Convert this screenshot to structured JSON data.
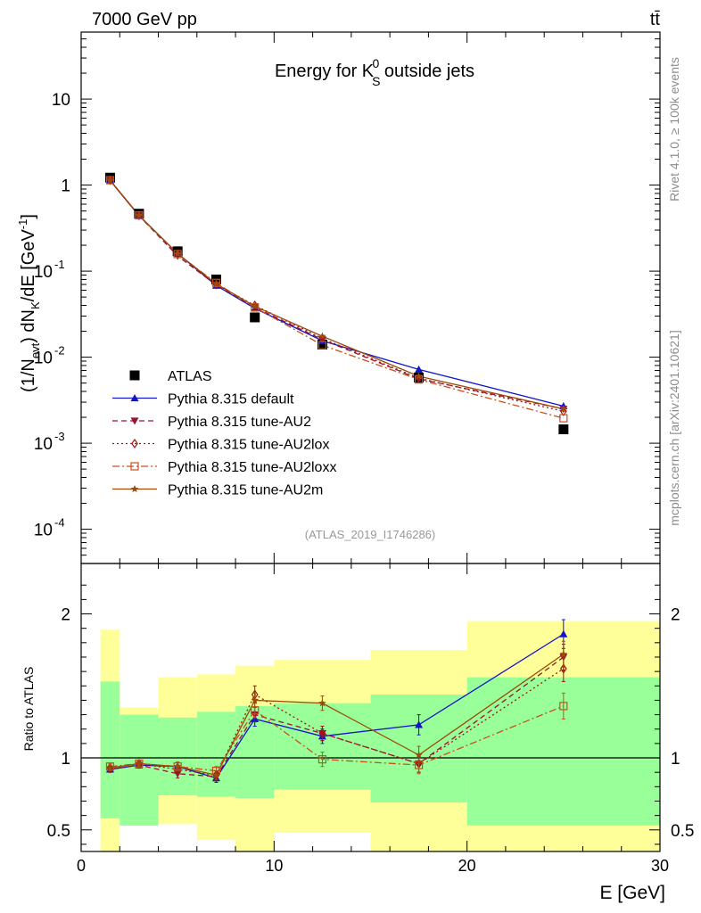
{
  "header": {
    "left": "7000 GeV pp",
    "right": "tt̄"
  },
  "side_labels": {
    "rivet": "Rivet 4.1.0, ≥ 100k events",
    "mcplots": "mcplots.cern.ch [arXiv:2401.10621]"
  },
  "colors": {
    "ATLAS": "#000000",
    "default": "#1414c8",
    "AU2": "#961432",
    "AU2lox": "#a01414",
    "AU2loxx": "#c8501e",
    "AU2m": "#9a4c0a",
    "band_inner": "#99ff99",
    "band_outer": "#ffff99"
  },
  "chart_data": [
    {
      "type": "line",
      "title": "Energy for K⁰S outside jets",
      "title_parts": {
        "pre": "Energy for K",
        "sup": "0",
        "sub": "S",
        "post": " outside jets"
      },
      "watermark": "(ATLAS_2019_I1746286)",
      "xlabel": "E [GeV]",
      "ylabel": "(1/Nevt) dNK/dE [GeV⁻¹]",
      "ylabel_parts": {
        "a": "(1/N",
        "a_sub": "evt",
        "b": ") dN",
        "b_sub": "K",
        "c": "/dE [GeV",
        "c_sup": "-1",
        "d": "]"
      },
      "xlim": [
        0,
        30
      ],
      "ylim": [
        4e-05,
        60
      ],
      "yscale": "log",
      "y_ticks": [
        {
          "value": 10,
          "label": "10"
        },
        {
          "value": 1,
          "label": "1"
        },
        {
          "value": 0.1,
          "label": "10",
          "exp": "-1"
        },
        {
          "value": 0.01,
          "label": "10",
          "exp": "-2"
        },
        {
          "value": 0.001,
          "label": "10",
          "exp": "-3"
        },
        {
          "value": 0.0001,
          "label": "10",
          "exp": "-4"
        }
      ],
      "x": [
        1.5,
        3,
        5,
        7,
        9,
        12.5,
        17.5,
        25
      ],
      "series": [
        {
          "name": "ATLAS",
          "key": "ATLAS",
          "style": "data",
          "marker": "square",
          "values": [
            1.22,
            0.465,
            0.17,
            0.08,
            0.029,
            0.014,
            0.0058,
            0.00145
          ]
        },
        {
          "name": "Pythia 8.315 default",
          "key": "default",
          "style": "solid",
          "marker": "triangle-up",
          "values": [
            1.13,
            0.44,
            0.16,
            0.068,
            0.037,
            0.0155,
            0.0072,
            0.0027
          ]
        },
        {
          "name": "Pythia 8.315 tune-AU2",
          "key": "AU2",
          "style": "dashed",
          "marker": "triangle-down",
          "values": [
            1.13,
            0.44,
            0.15,
            0.069,
            0.038,
            0.016,
            0.0056,
            0.0025
          ]
        },
        {
          "name": "Pythia 8.315 tune-AU2lox",
          "key": "AU2lox",
          "style": "dotted",
          "marker": "diamond",
          "values": [
            1.14,
            0.445,
            0.158,
            0.07,
            0.04,
            0.0165,
            0.0057,
            0.00235
          ]
        },
        {
          "name": "Pythia 8.315 tune-AU2loxx",
          "key": "AU2loxx",
          "style": "dashdot",
          "marker": "open-square",
          "values": [
            1.14,
            0.445,
            0.158,
            0.073,
            0.038,
            0.0138,
            0.0055,
            0.00195
          ]
        },
        {
          "name": "Pythia 8.315 tune-AU2m",
          "key": "AU2m",
          "style": "solid",
          "marker": "star",
          "values": [
            1.14,
            0.445,
            0.16,
            0.071,
            0.039,
            0.0175,
            0.006,
            0.0025
          ]
        }
      ]
    },
    {
      "type": "line",
      "title": "Ratio to ATLAS",
      "xlabel": "E [GeV]",
      "ylabel": "Ratio to ATLAS",
      "xlim": [
        0,
        30
      ],
      "ylim": [
        0.35,
        2.35
      ],
      "x_ticks": [
        0,
        10,
        20,
        30
      ],
      "y_ticks": [
        0.5,
        1,
        2
      ],
      "bin_edges": [
        1,
        2,
        4,
        6,
        8,
        10,
        15,
        20,
        30
      ],
      "uncertainty_band_inner": [
        [
          0.58,
          1.53
        ],
        [
          0.53,
          1.3
        ],
        [
          0.74,
          1.28
        ],
        [
          0.73,
          1.32
        ],
        [
          0.72,
          1.36
        ],
        [
          0.78,
          1.38
        ],
        [
          0.69,
          1.44
        ],
        [
          0.53,
          1.56
        ]
      ],
      "uncertainty_band_outer": [
        [
          0.3,
          1.89
        ],
        [
          0.78,
          1.35
        ],
        [
          0.54,
          1.56
        ],
        [
          0.43,
          1.58
        ],
        [
          0.3,
          1.64
        ],
        [
          0.48,
          1.68
        ],
        [
          0.3,
          1.75
        ],
        [
          0.3,
          1.95
        ]
      ],
      "x": [
        1.5,
        3,
        5,
        7,
        9,
        12.5,
        17.5,
        25
      ],
      "series": [
        {
          "name": "Pythia 8.315 default",
          "key": "default",
          "style": "solid",
          "marker": "triangle-up",
          "values": [
            0.92,
            0.95,
            0.94,
            0.86,
            1.27,
            1.15,
            1.23,
            1.86
          ],
          "errors": [
            0.02,
            0.02,
            0.03,
            0.03,
            0.05,
            0.05,
            0.07,
            0.1
          ]
        },
        {
          "name": "Pythia 8.315 tune-AU2",
          "key": "AU2",
          "style": "dashed",
          "marker": "triangle-down",
          "values": [
            0.92,
            0.95,
            0.89,
            0.87,
            1.3,
            1.17,
            0.96,
            1.7
          ],
          "errors": [
            0.02,
            0.02,
            0.03,
            0.03,
            0.05,
            0.05,
            0.06,
            0.09
          ]
        },
        {
          "name": "Pythia 8.315 tune-AU2lox",
          "key": "AU2lox",
          "style": "dotted",
          "marker": "diamond",
          "values": [
            0.93,
            0.96,
            0.92,
            0.88,
            1.44,
            1.17,
            0.96,
            1.62
          ],
          "errors": [
            0.02,
            0.02,
            0.03,
            0.03,
            0.06,
            0.05,
            0.06,
            0.09
          ]
        },
        {
          "name": "Pythia 8.315 tune-AU2loxx",
          "key": "AU2loxx",
          "style": "dashdot",
          "marker": "open-square",
          "values": [
            0.94,
            0.96,
            0.94,
            0.91,
            1.33,
            0.99,
            0.95,
            1.36
          ],
          "errors": [
            0.02,
            0.02,
            0.03,
            0.03,
            0.05,
            0.05,
            0.06,
            0.09
          ]
        },
        {
          "name": "Pythia 8.315 tune-AU2m",
          "key": "AU2m",
          "style": "solid",
          "marker": "star",
          "values": [
            0.93,
            0.96,
            0.94,
            0.88,
            1.4,
            1.38,
            1.02,
            1.72
          ],
          "errors": [
            0.02,
            0.02,
            0.03,
            0.03,
            0.05,
            0.05,
            0.06,
            0.09
          ]
        }
      ]
    }
  ]
}
